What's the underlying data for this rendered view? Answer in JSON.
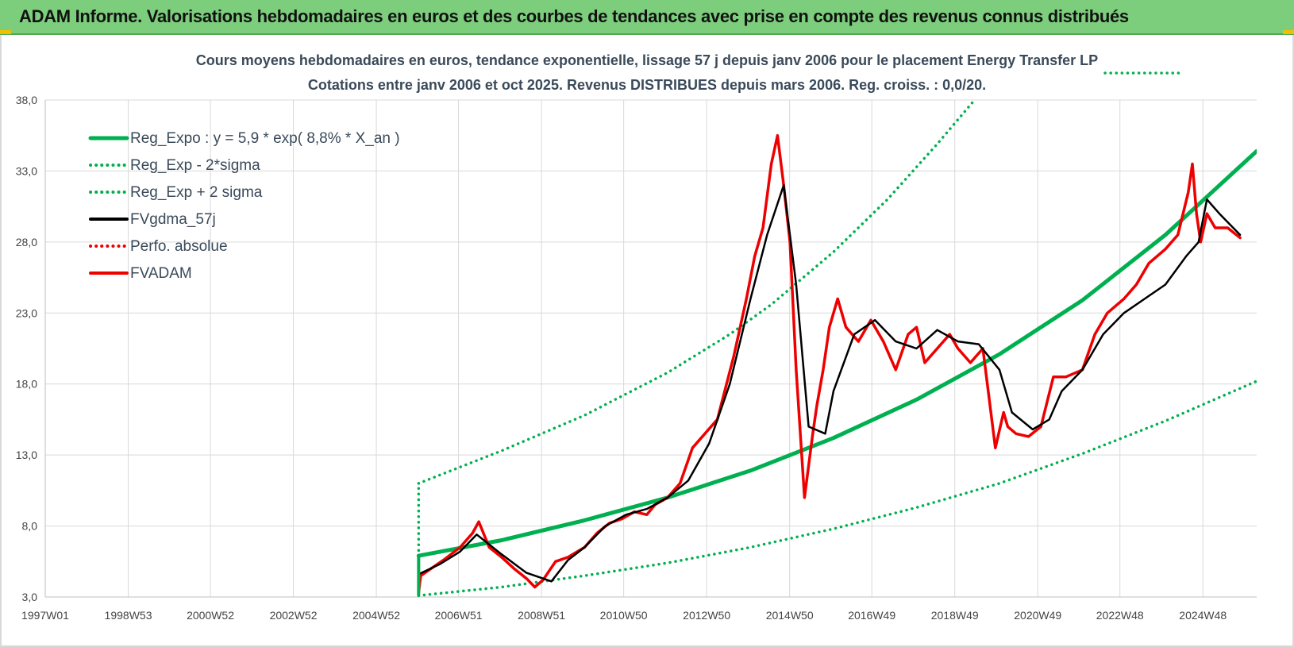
{
  "header": {
    "title": "ADAM Informe. Valorisations hebdomadaires en euros et des courbes de tendances avec prise en compte des revenus connus distribués"
  },
  "chart_data": {
    "type": "line",
    "title": "Cours moyens hebdomadaires en euros, tendance exponentielle, lissage 57 j depuis janv 2006 pour le placement Energy Transfer LP",
    "subtitle": "Cotations entre janv 2006 et oct 2025. Revenus DISTRIBUES depuis mars 2006. Reg. croiss. : 0,0/20.",
    "xlabel": "",
    "ylabel": "",
    "x_tick_labels": [
      "1997W01",
      "1998W53",
      "2000W52",
      "2002W52",
      "2004W52",
      "2006W51",
      "2008W51",
      "2010W50",
      "2012W50",
      "2014W50",
      "2016W49",
      "2018W49",
      "2020W49",
      "2022W48",
      "2024W48"
    ],
    "y_tick_labels": [
      "3,0",
      "8,0",
      "13,0",
      "18,0",
      "23,0",
      "28,0",
      "33,0",
      "38,0"
    ],
    "xlim": [
      1997.0,
      2026.2
    ],
    "ylim": [
      3.0,
      38.0
    ],
    "grid": true,
    "legend_position": "top-left",
    "colors": {
      "green": "#00b050",
      "red": "#ee0000",
      "black": "#000000",
      "header": "#7ccd7c"
    },
    "series": [
      {
        "name": "Reg_Expo : y = 5,9 * exp( 8,8% *  X_an )",
        "style": "solid",
        "color": "#00b050",
        "x": [
          2006.0,
          2008.0,
          2010.0,
          2012.0,
          2014.0,
          2016.0,
          2018.0,
          2020.0,
          2022.0,
          2024.0,
          2026.2
        ],
        "y": [
          5.9,
          7.0,
          8.4,
          10.0,
          11.9,
          14.2,
          16.9,
          20.1,
          23.9,
          28.5,
          34.4
        ]
      },
      {
        "name": "Reg_Exp - 2*sigma",
        "style": "dotted",
        "color": "#00b050",
        "x": [
          2006.0,
          2008.0,
          2010.0,
          2012.0,
          2014.0,
          2016.0,
          2018.0,
          2020.0,
          2022.0,
          2024.0,
          2026.2
        ],
        "y": [
          3.1,
          3.7,
          4.5,
          5.4,
          6.5,
          7.8,
          9.3,
          11.0,
          13.1,
          15.4,
          18.2
        ]
      },
      {
        "name": "Reg_Exp + 2 sigma",
        "style": "dotted",
        "color": "#00b050",
        "x": [
          2006.0,
          2008.0,
          2010.0,
          2012.0,
          2013.5,
          2014.5,
          2016.0,
          2017.3,
          2018.5,
          2019.4
        ],
        "y": [
          11.0,
          13.3,
          15.8,
          18.8,
          21.5,
          23.6,
          27.3,
          31.0,
          34.9,
          38.0
        ]
      },
      {
        "name": "FVgdma_57j",
        "style": "solid",
        "color": "#000000",
        "x": [
          2006.0,
          2006.5,
          2007.0,
          2007.4,
          2008.0,
          2008.6,
          2009.2,
          2009.6,
          2010.0,
          2010.5,
          2011.0,
          2011.5,
          2012.0,
          2012.5,
          2013.0,
          2013.5,
          2014.0,
          2014.4,
          2014.8,
          2015.1,
          2015.4,
          2015.8,
          2016.0,
          2016.5,
          2017.0,
          2017.5,
          2018.0,
          2018.5,
          2019.0,
          2019.5,
          2020.0,
          2020.3,
          2020.8,
          2021.2,
          2021.5,
          2022.0,
          2022.5,
          2023.0,
          2023.5,
          2024.0,
          2024.5,
          2024.8,
          2025.0,
          2025.3,
          2025.8
        ],
        "y": [
          4.6,
          5.3,
          6.2,
          7.4,
          6.0,
          4.7,
          4.1,
          5.6,
          6.5,
          8.0,
          8.8,
          9.2,
          10.0,
          11.2,
          13.8,
          18.0,
          24.0,
          28.5,
          32.0,
          25.0,
          15.0,
          14.5,
          17.5,
          21.5,
          22.5,
          21.0,
          20.5,
          21.8,
          21.0,
          20.8,
          19.0,
          16.0,
          14.8,
          15.5,
          17.5,
          19.0,
          21.5,
          23.0,
          24.0,
          25.0,
          27.0,
          28.0,
          31.0,
          30.0,
          28.5
        ]
      },
      {
        "name": "Perfo. absolue",
        "style": "dotted",
        "color": "#ee0000",
        "x": [],
        "y": []
      },
      {
        "name": "FVADAM",
        "style": "solid",
        "color": "#ee0000",
        "x": [
          2006.0,
          2006.05,
          2006.3,
          2006.6,
          2007.0,
          2007.3,
          2007.45,
          2007.7,
          2008.0,
          2008.3,
          2008.6,
          2008.8,
          2009.0,
          2009.3,
          2009.6,
          2010.0,
          2010.3,
          2010.6,
          2010.9,
          2011.2,
          2011.5,
          2011.7,
          2012.0,
          2012.3,
          2012.6,
          2012.9,
          2013.2,
          2013.6,
          2013.9,
          2014.1,
          2014.3,
          2014.5,
          2014.65,
          2014.8,
          2014.95,
          2015.1,
          2015.3,
          2015.5,
          2015.6,
          2015.75,
          2015.9,
          2016.1,
          2016.3,
          2016.6,
          2016.9,
          2017.2,
          2017.5,
          2017.8,
          2018.0,
          2018.2,
          2018.5,
          2018.8,
          2019.0,
          2019.3,
          2019.6,
          2019.9,
          2020.1,
          2020.2,
          2020.4,
          2020.7,
          2021.0,
          2021.3,
          2021.6,
          2022.0,
          2022.3,
          2022.6,
          2023.0,
          2023.3,
          2023.6,
          2024.0,
          2024.3,
          2024.55,
          2024.65,
          2024.75,
          2024.85,
          2025.0,
          2025.2,
          2025.5,
          2025.8
        ],
        "y": [
          3.3,
          4.5,
          5.0,
          5.6,
          6.5,
          7.5,
          8.3,
          6.5,
          5.8,
          5.0,
          4.3,
          3.7,
          4.2,
          5.5,
          5.8,
          6.5,
          7.5,
          8.2,
          8.5,
          9.0,
          8.8,
          9.5,
          10.0,
          11.0,
          13.5,
          14.5,
          15.5,
          20.0,
          24.0,
          27.0,
          29.0,
          33.5,
          35.5,
          32.0,
          28.0,
          19.0,
          10.0,
          14.5,
          16.5,
          19.0,
          22.0,
          24.0,
          22.0,
          21.0,
          22.5,
          21.0,
          19.0,
          21.5,
          22.0,
          19.5,
          20.5,
          21.5,
          20.5,
          19.5,
          20.5,
          13.5,
          16.0,
          15.0,
          14.5,
          14.3,
          15.0,
          18.5,
          18.5,
          19.0,
          21.5,
          23.0,
          24.0,
          25.0,
          26.5,
          27.5,
          28.5,
          31.5,
          33.5,
          30.0,
          28.0,
          30.0,
          29.0,
          29.0,
          28.3
        ]
      }
    ]
  }
}
